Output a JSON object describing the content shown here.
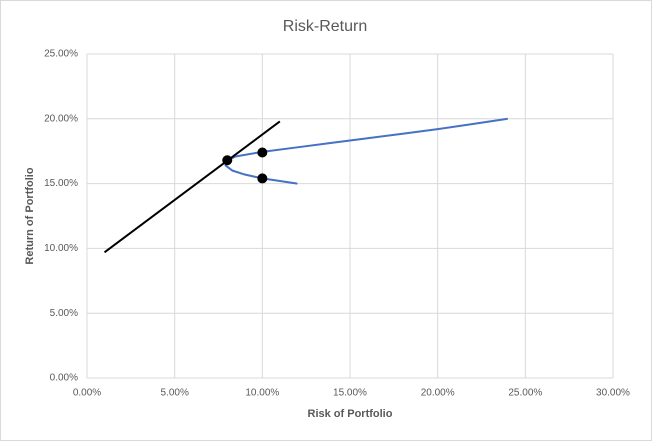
{
  "chart_data": {
    "type": "scatter",
    "title": "Risk-Return",
    "x_label": "Risk of Portfolio",
    "y_label": "Return of Portfolio",
    "xlim": [
      0,
      30
    ],
    "ylim": [
      0,
      25
    ],
    "grid": true,
    "xticks": [
      {
        "value": 0,
        "label": "0.00%"
      },
      {
        "value": 5,
        "label": "5.00%"
      },
      {
        "value": 10,
        "label": "10.00%"
      },
      {
        "value": 15,
        "label": "15.00%"
      },
      {
        "value": 20,
        "label": "20.00%"
      },
      {
        "value": 25,
        "label": "25.00%"
      },
      {
        "value": 30,
        "label": "30.00%"
      }
    ],
    "yticks": [
      {
        "value": 0,
        "label": "0.00%"
      },
      {
        "value": 5,
        "label": "5.00%"
      },
      {
        "value": 10,
        "label": "10.00%"
      },
      {
        "value": 15,
        "label": "15.00%"
      },
      {
        "value": 20,
        "label": "20.00%"
      },
      {
        "value": 25,
        "label": "25.00%"
      }
    ],
    "series": [
      {
        "style": "line",
        "color": "#4472c4",
        "x": [
          12,
          11,
          10,
          9,
          8.3,
          7.9,
          8.0,
          8.5,
          10,
          12,
          14,
          16,
          18,
          20,
          22,
          24
        ],
        "values": [
          15.0,
          15.2,
          15.4,
          15.7,
          16.0,
          16.4,
          16.8,
          17.1,
          17.45,
          17.8,
          18.15,
          18.5,
          18.85,
          19.2,
          19.6,
          20.0
        ]
      },
      {
        "style": "line",
        "color": "#000000",
        "x": [
          1,
          11
        ],
        "values": [
          9.7,
          19.8
        ]
      },
      {
        "style": "marker",
        "color": "#000000",
        "x": [
          8,
          10,
          10
        ],
        "values": [
          16.8,
          17.4,
          15.4
        ]
      }
    ]
  }
}
